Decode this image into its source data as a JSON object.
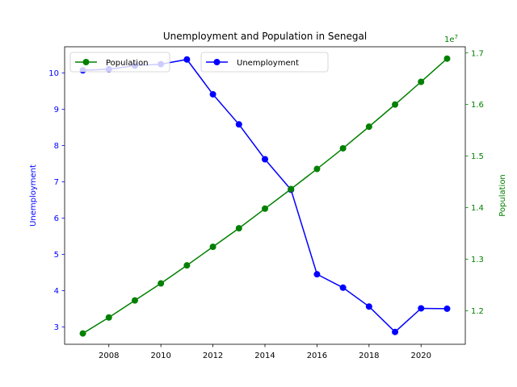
{
  "chart_data": {
    "type": "line",
    "title": "Unemployment and Population in Senegal",
    "xlabel": "",
    "x": [
      2007,
      2008,
      2009,
      2010,
      2011,
      2012,
      2013,
      2014,
      2015,
      2016,
      2017,
      2018,
      2019,
      2020,
      2021
    ],
    "xticks": [
      "2008",
      "2010",
      "2012",
      "2014",
      "2016",
      "2018",
      "2020"
    ],
    "xlim": [
      2006.3,
      2021.7
    ],
    "left_axis": {
      "label": "Unemployment",
      "color": "#0000ff",
      "ylim": [
        2.52,
        10.72
      ],
      "ticks": [
        "3",
        "4",
        "5",
        "6",
        "7",
        "8",
        "9",
        "10"
      ]
    },
    "right_axis": {
      "label": "Population",
      "color": "#008000",
      "multiplier": "1e7",
      "ylim": [
        1.135,
        1.712
      ],
      "ticks": [
        "1.2",
        "1.3",
        "1.4",
        "1.5",
        "1.6",
        "1.7"
      ]
    },
    "series": [
      {
        "name": "Unemployment",
        "axis": "left",
        "color": "#0000ff",
        "values": [
          10.07,
          10.1,
          10.2,
          10.24,
          10.37,
          9.41,
          8.58,
          7.62,
          6.78,
          4.45,
          4.08,
          3.56,
          2.86,
          3.51,
          3.5
        ]
      },
      {
        "name": "Population",
        "axis": "right",
        "color": "#008000",
        "values": [
          1.156,
          1.187,
          1.22,
          1.253,
          1.288,
          1.324,
          1.36,
          1.398,
          1.436,
          1.475,
          1.515,
          1.557,
          1.6,
          1.644,
          1.689
        ]
      }
    ],
    "legends": [
      {
        "series": "Population",
        "placement": "upper-left"
      },
      {
        "series": "Unemployment",
        "placement": "upper-center"
      }
    ],
    "grid": false
  }
}
